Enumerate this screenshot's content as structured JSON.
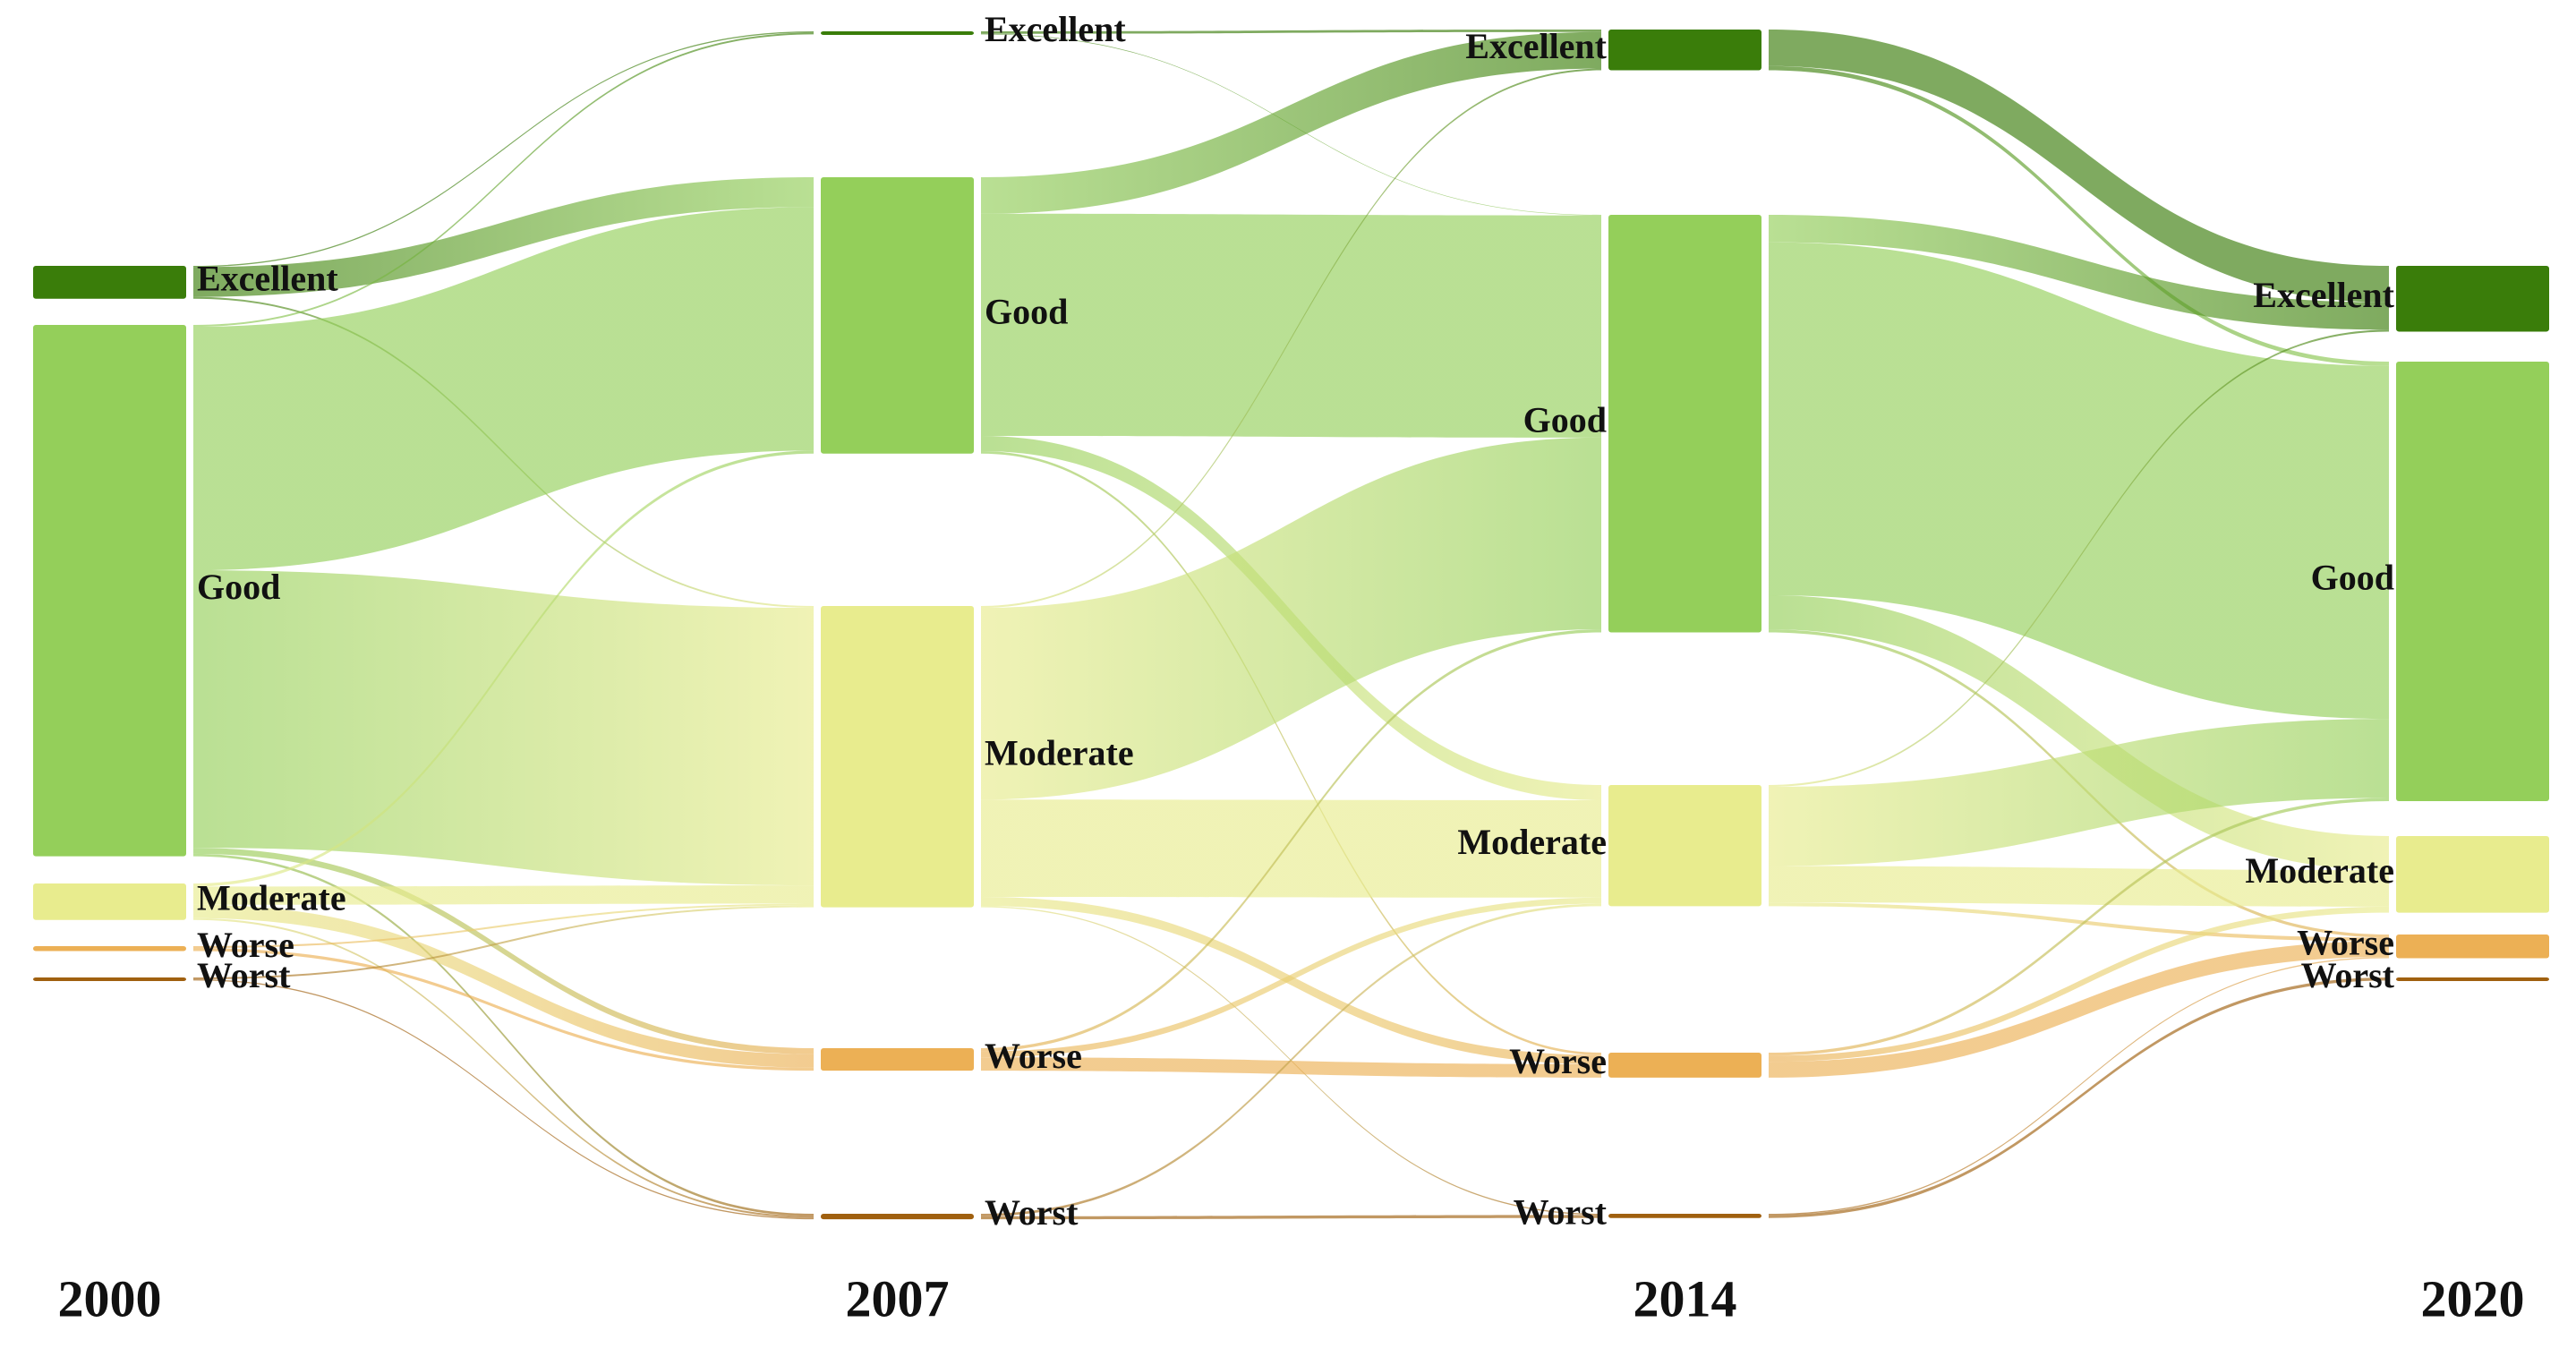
{
  "chart_data": {
    "type": "sankey",
    "categories": [
      "Excellent",
      "Good",
      "Moderate",
      "Worse",
      "Worst"
    ],
    "colors": [
      "#3a7d0a",
      "#94cf5a",
      "#e8ec8e",
      "#ecb055",
      "#a0600f"
    ],
    "columns": [
      {
        "year": "2000",
        "nodes": [
          "Excellent",
          "Good",
          "Moderate",
          "Worse",
          "Worst"
        ]
      },
      {
        "year": "2007",
        "nodes": [
          "Excellent",
          "Good",
          "Moderate",
          "Worse",
          "Worst"
        ]
      },
      {
        "year": "2014",
        "nodes": [
          "Excellent",
          "Good",
          "Moderate",
          "Worse",
          "Worst"
        ]
      },
      {
        "year": "2020",
        "nodes": [
          "Excellent",
          "Good",
          "Moderate",
          "Worse",
          "Worst"
        ]
      }
    ],
    "flows": [
      [
        [
          0.2,
          4.9,
          0.3,
          0,
          0
        ],
        [
          0.3,
          40,
          45.6,
          1.0,
          0.4
        ],
        [
          0,
          0.5,
          3.0,
          2.2,
          0.3
        ],
        [
          0,
          0,
          0.3,
          0.5,
          0
        ],
        [
          0,
          0,
          0.3,
          0,
          0.2
        ]
      ],
      [
        [
          0.4,
          0.1,
          0,
          0,
          0
        ],
        [
          6.0,
          36.5,
          2.5,
          0.4,
          0
        ],
        [
          0.3,
          31.5,
          16,
          1.5,
          0.2
        ],
        [
          0,
          0.5,
          1.0,
          2.2,
          0
        ],
        [
          0,
          0,
          0.4,
          0,
          0.5
        ]
      ],
      [
        [
          6.0,
          0.7,
          0,
          0,
          0
        ],
        [
          4.5,
          58,
          5.6,
          0.5,
          0
        ],
        [
          0.3,
          13,
          6,
          0.6,
          0
        ],
        [
          0,
          0.5,
          1.0,
          2.6,
          0
        ],
        [
          0,
          0,
          0,
          0.2,
          0.5
        ]
      ]
    ]
  }
}
